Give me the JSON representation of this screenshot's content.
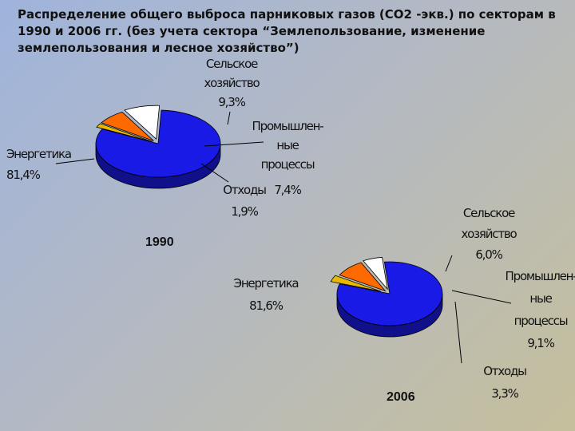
{
  "title": "Распределение общего выброса парниковых газов (СО2 -экв.) по секторам в 1990 и 2006  гг. (без учета сектора “Землепользование, изменение землепользования и лесное хозяйство”)",
  "colors": {
    "energy": "#1a1ae6",
    "agriculture": "#ffffff",
    "industry": "#ff6a00",
    "waste": "#e8b800"
  },
  "chart_data": [
    {
      "type": "pie",
      "title": "1990",
      "slices": [
        {
          "name": "Энергетика",
          "value": 81.4,
          "label_lines": [
            "Энергетика",
            "81,4%"
          ]
        },
        {
          "name": "Сельское хозяйство",
          "value": 9.3,
          "label_lines": [
            "Сельское",
            "хозяйство",
            "9,3%"
          ]
        },
        {
          "name": "Промышленные процессы",
          "value": 7.4,
          "label_lines": [
            "Промышлен-",
            "ные",
            "процессы",
            "7,4%"
          ]
        },
        {
          "name": "Отходы",
          "value": 1.9,
          "label_lines": [
            "Отходы",
            "1,9%"
          ]
        }
      ]
    },
    {
      "type": "pie",
      "title": "2006",
      "slices": [
        {
          "name": "Энергетика",
          "value": 81.6,
          "label_lines": [
            "Энергетика",
            "81,6%"
          ]
        },
        {
          "name": "Сельское хозяйство",
          "value": 6.0,
          "label_lines": [
            "Сельское",
            "хозяйство",
            "6,0%"
          ]
        },
        {
          "name": "Промышленные процессы",
          "value": 9.1,
          "label_lines": [
            "Промышлен-",
            "ные",
            "процессы",
            "9,1%"
          ]
        },
        {
          "name": "Отходы",
          "value": 3.3,
          "label_lines": [
            "Отходы",
            "3,3%"
          ]
        }
      ]
    }
  ]
}
